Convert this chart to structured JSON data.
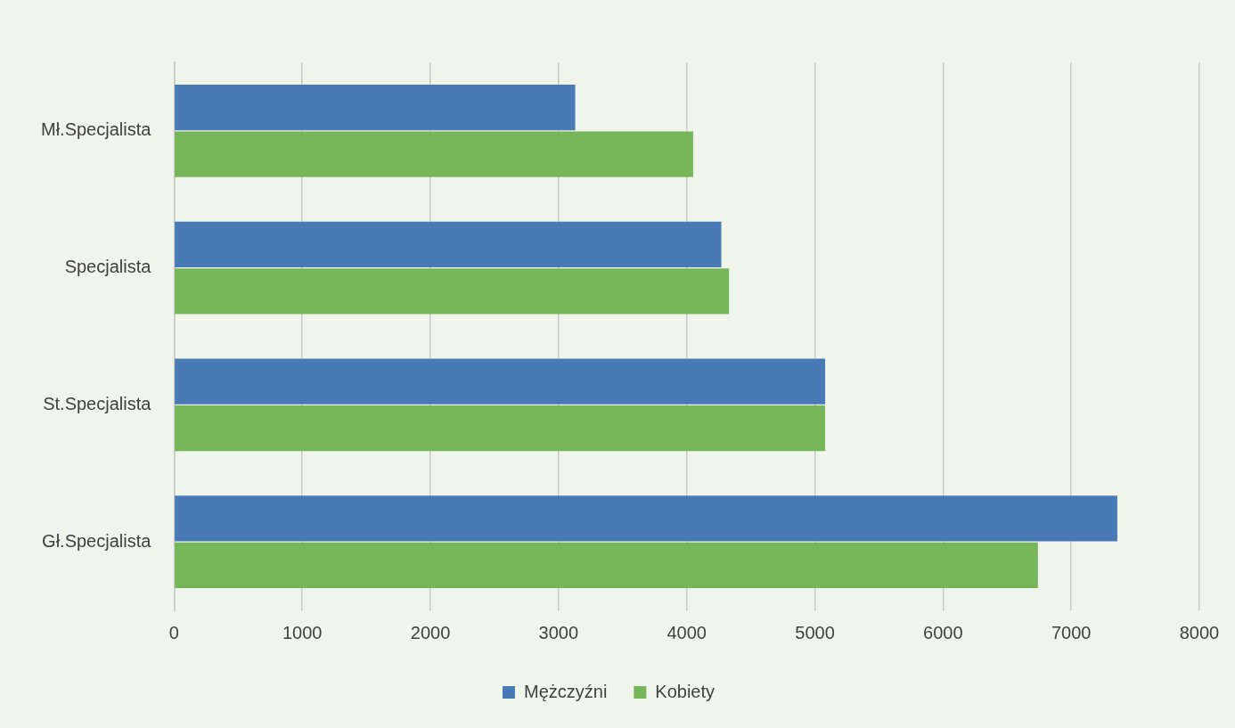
{
  "chart_data": {
    "type": "bar",
    "orientation": "horizontal",
    "categories": [
      "Mł.Specjalista",
      "Specjalista",
      "St.Specjalista",
      "Gł.Specjalista"
    ],
    "series": [
      {
        "name": "Mężczyźni",
        "color": "#4a7ab5",
        "values": [
          3130,
          4270,
          5080,
          7360
        ]
      },
      {
        "name": "Kobiety",
        "color": "#77b55a",
        "values": [
          4050,
          4330,
          5080,
          6740
        ]
      }
    ],
    "xlim": [
      0,
      8000
    ],
    "xticks": [
      0,
      1000,
      2000,
      3000,
      4000,
      5000,
      6000,
      7000,
      8000
    ],
    "grid": "x",
    "legend": "bottom"
  }
}
